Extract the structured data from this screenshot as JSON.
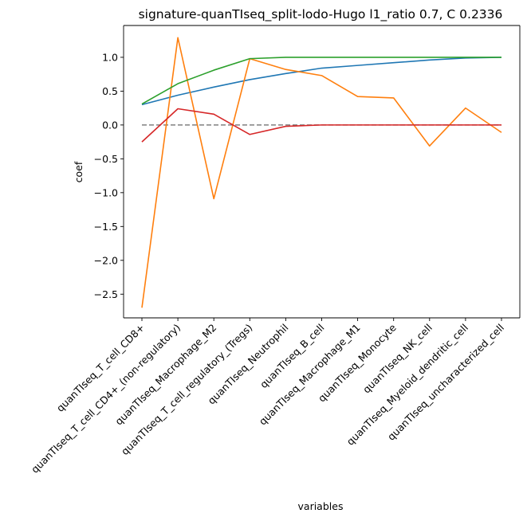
{
  "chart_data": {
    "type": "line",
    "title": "signature-quanTIseq_split-lodo-Hugo l1_ratio 0.7, C 0.2336",
    "xlabel": "variables",
    "ylabel": "coef",
    "ylim": [
      -2.85,
      1.47
    ],
    "yticks": [
      1.0,
      0.5,
      0.0,
      -0.5,
      -1.0,
      -1.5,
      -2.0,
      -2.5
    ],
    "yticklabels": [
      "1.0",
      "0.5",
      "0.0",
      "−0.5",
      "−1.0",
      "−1.5",
      "−2.0",
      "−2.5"
    ],
    "categories": [
      "quanTIseq_T_cell_CD8+",
      "quanTIseq_T_cell_CD4+_(non-regulatory)",
      "quanTIseq_Macrophage_M2",
      "quanTIseq_T_cell_regulatory_(Tregs)",
      "quanTIseq_Neutrophil",
      "quanTIseq_B_cell",
      "quanTIseq_Macrophage_M1",
      "quanTIseq_Monocyte",
      "quanTIseq_NK_cell",
      "quanTIseq_Myeloid_dendritic_cell",
      "quanTIseq_uncharacterized_cell"
    ],
    "series": [
      {
        "color": "#1f77b4",
        "values": [
          0.3,
          0.44,
          0.56,
          0.67,
          0.76,
          0.84,
          0.88,
          0.92,
          0.96,
          0.99,
          1.0
        ]
      },
      {
        "color": "#ff7f0e",
        "values": [
          -2.7,
          1.29,
          -1.09,
          0.98,
          0.82,
          0.73,
          0.42,
          0.4,
          -0.31,
          0.25,
          -0.11
        ]
      },
      {
        "color": "#2ca02c",
        "values": [
          0.31,
          0.61,
          0.81,
          0.98,
          1.0,
          1.0,
          1.0,
          1.0,
          1.0,
          1.0,
          1.0
        ]
      },
      {
        "color": "#d62728",
        "values": [
          -0.25,
          0.24,
          0.16,
          -0.14,
          -0.02,
          0.0,
          0.0,
          0.0,
          0.0,
          0.0,
          0.0
        ]
      }
    ],
    "reference_line": {
      "y": 0.0,
      "color": "#808080",
      "style": "dashed"
    },
    "grid": false,
    "legend": "none"
  }
}
